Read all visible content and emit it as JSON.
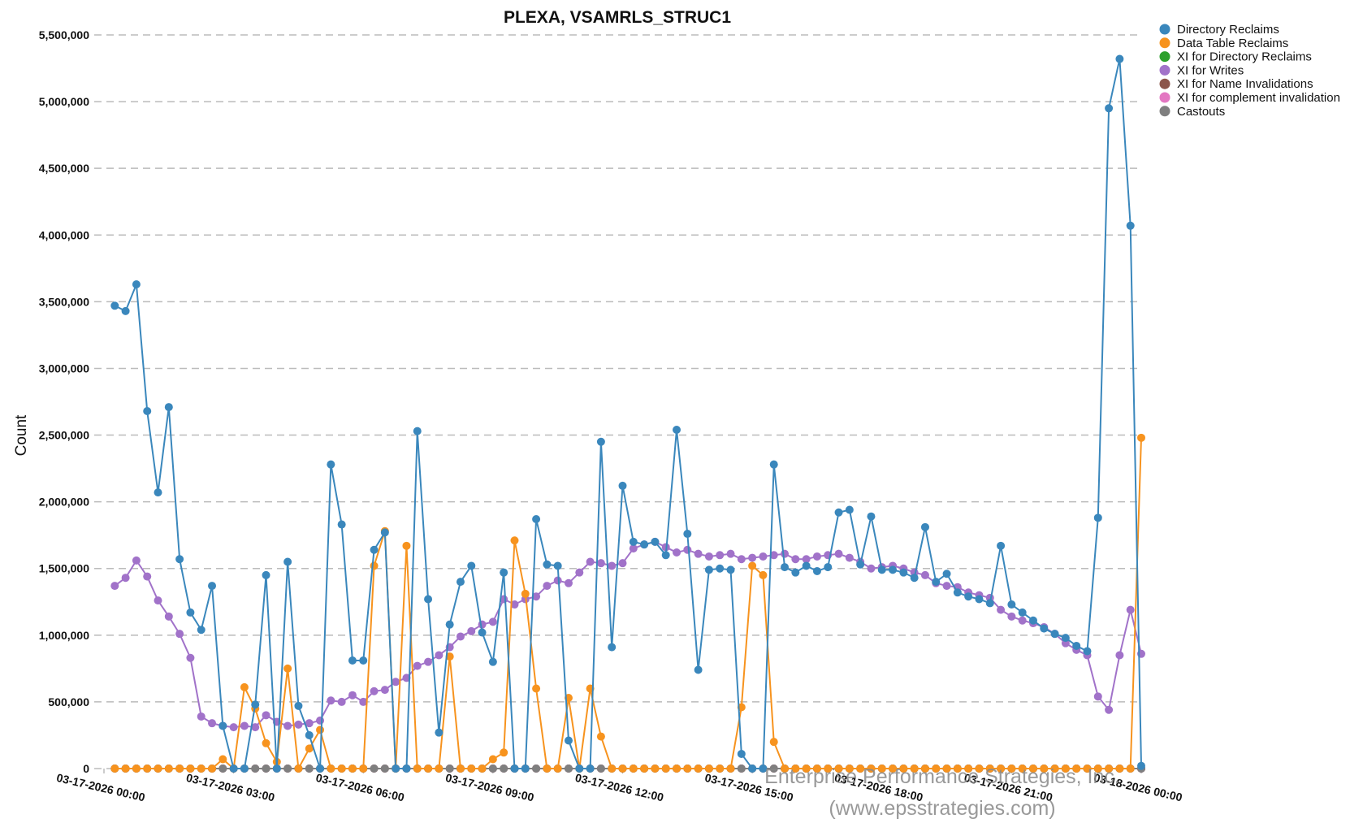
{
  "chart_data": {
    "type": "line",
    "title": "PLEXA, VSAMRLS_STRUC1",
    "ylabel": "Count",
    "watermark": [
      "Enterprise Performance Strategies, Inc.",
      "(www.epsstrategies.com)"
    ],
    "grid": true,
    "legend": "right",
    "xlim": [
      "03-17-2026 00:00",
      "03-18-2026 00:00"
    ],
    "xticks": [
      "03-17-2026 00:00",
      "03-17-2026 03:00",
      "03-17-2026 06:00",
      "03-17-2026 09:00",
      "03-17-2026 12:00",
      "03-17-2026 15:00",
      "03-17-2026 18:00",
      "03-17-2026 21:00",
      "03-18-2026 00:00"
    ],
    "ylim": [
      0,
      5500000
    ],
    "yticks": [
      0,
      {
        "value": 500000,
        "label": "500,000"
      },
      {
        "value": 1000000,
        "label": "1,000,000"
      },
      {
        "value": 1500000,
        "label": "1,500,000"
      },
      {
        "value": 2000000,
        "label": "2,000,000"
      },
      {
        "value": 2500000,
        "label": "2,500,000"
      },
      {
        "value": 3000000,
        "label": "3,000,000"
      },
      {
        "value": 3500000,
        "label": "3,500,000"
      },
      {
        "value": 4000000,
        "label": "4,000,000"
      },
      {
        "value": 4500000,
        "label": "4,500,000"
      },
      {
        "value": 5000000,
        "label": "5,000,000"
      },
      {
        "value": 5500000,
        "label": "5,500,000"
      }
    ],
    "x": [
      "03-17-2026 00:15",
      "03-17-2026 00:30",
      "03-17-2026 00:45",
      "03-17-2026 01:00",
      "03-17-2026 01:15",
      "03-17-2026 01:30",
      "03-17-2026 01:45",
      "03-17-2026 02:00",
      "03-17-2026 02:15",
      "03-17-2026 02:30",
      "03-17-2026 02:45",
      "03-17-2026 03:00",
      "03-17-2026 03:15",
      "03-17-2026 03:30",
      "03-17-2026 03:45",
      "03-17-2026 04:00",
      "03-17-2026 04:15",
      "03-17-2026 04:30",
      "03-17-2026 04:45",
      "03-17-2026 05:00",
      "03-17-2026 05:15",
      "03-17-2026 05:30",
      "03-17-2026 05:45",
      "03-17-2026 06:00",
      "03-17-2026 06:15",
      "03-17-2026 06:30",
      "03-17-2026 06:45",
      "03-17-2026 07:00",
      "03-17-2026 07:15",
      "03-17-2026 07:30",
      "03-17-2026 07:45",
      "03-17-2026 08:00",
      "03-17-2026 08:15",
      "03-17-2026 08:30",
      "03-17-2026 08:45",
      "03-17-2026 09:00",
      "03-17-2026 09:15",
      "03-17-2026 09:30",
      "03-17-2026 09:45",
      "03-17-2026 10:00",
      "03-17-2026 10:15",
      "03-17-2026 10:30",
      "03-17-2026 10:45",
      "03-17-2026 11:00",
      "03-17-2026 11:15",
      "03-17-2026 11:30",
      "03-17-2026 11:45",
      "03-17-2026 12:00",
      "03-17-2026 12:15",
      "03-17-2026 12:30",
      "03-17-2026 12:45",
      "03-17-2026 13:00",
      "03-17-2026 13:15",
      "03-17-2026 13:30",
      "03-17-2026 13:45",
      "03-17-2026 14:00",
      "03-17-2026 14:15",
      "03-17-2026 14:30",
      "03-17-2026 14:45",
      "03-17-2026 15:00",
      "03-17-2026 15:15",
      "03-17-2026 15:30",
      "03-17-2026 15:45",
      "03-17-2026 16:00",
      "03-17-2026 16:15",
      "03-17-2026 16:30",
      "03-17-2026 16:45",
      "03-17-2026 17:00",
      "03-17-2026 17:15",
      "03-17-2026 17:30",
      "03-17-2026 17:45",
      "03-17-2026 18:00",
      "03-17-2026 18:15",
      "03-17-2026 18:30",
      "03-17-2026 18:45",
      "03-17-2026 19:00",
      "03-17-2026 19:15",
      "03-17-2026 19:30",
      "03-17-2026 19:45",
      "03-17-2026 20:00",
      "03-17-2026 20:15",
      "03-17-2026 20:30",
      "03-17-2026 20:45",
      "03-17-2026 21:00",
      "03-17-2026 21:15",
      "03-17-2026 21:30",
      "03-17-2026 21:45",
      "03-17-2026 22:00",
      "03-17-2026 22:15",
      "03-17-2026 22:30",
      "03-17-2026 22:45",
      "03-17-2026 23:00",
      "03-17-2026 23:15",
      "03-17-2026 23:30",
      "03-17-2026 23:45",
      "03-18-2026 00:00"
    ],
    "series": [
      {
        "name": "Directory Reclaims",
        "color": "#3a87bc",
        "values": [
          3470000,
          3430000,
          3630000,
          2680000,
          2070000,
          2710000,
          1570000,
          1170000,
          1040000,
          1370000,
          320000,
          0,
          0,
          480000,
          1450000,
          0,
          1550000,
          470000,
          250000,
          0,
          2280000,
          1830000,
          810000,
          810000,
          1640000,
          1770000,
          0,
          0,
          2530000,
          1270000,
          270000,
          1080000,
          1400000,
          1520000,
          1020000,
          800000,
          1470000,
          0,
          0,
          1870000,
          1530000,
          1520000,
          210000,
          0,
          0,
          2450000,
          910000,
          2120000,
          1700000,
          1680000,
          1700000,
          1600000,
          2540000,
          1760000,
          740000,
          1490000,
          1500000,
          1490000,
          110000,
          0,
          0,
          2280000,
          1510000,
          1470000,
          1520000,
          1480000,
          1510000,
          1920000,
          1940000,
          1530000,
          1890000,
          1490000,
          1490000,
          1470000,
          1430000,
          1810000,
          1400000,
          1460000,
          1320000,
          1290000,
          1270000,
          1240000,
          1670000,
          1230000,
          1170000,
          1110000,
          1050000,
          1010000,
          980000,
          920000,
          880000,
          1880000,
          4950000,
          5320000,
          4070000,
          20000
        ]
      },
      {
        "name": "Data Table Reclaims",
        "color": "#f7931e",
        "values": [
          0,
          0,
          0,
          0,
          0,
          0,
          0,
          0,
          0,
          0,
          70000,
          0,
          610000,
          450000,
          190000,
          50000,
          750000,
          0,
          150000,
          290000,
          0,
          0,
          0,
          0,
          1520000,
          1780000,
          0,
          1670000,
          0,
          0,
          0,
          840000,
          0,
          0,
          0,
          70000,
          120000,
          1710000,
          1310000,
          600000,
          0,
          0,
          530000,
          0,
          600000,
          240000,
          0,
          0,
          0,
          0,
          0,
          0,
          0,
          0,
          0,
          0,
          0,
          0,
          460000,
          1520000,
          1450000,
          200000,
          0,
          0,
          0,
          0,
          0,
          0,
          0,
          0,
          0,
          0,
          0,
          0,
          0,
          0,
          0,
          0,
          0,
          0,
          0,
          0,
          0,
          0,
          0,
          0,
          0,
          0,
          0,
          0,
          0,
          0,
          0,
          0,
          0,
          2480000
        ]
      },
      {
        "name": "XI for Directory Reclaims",
        "color": "#2ca02c",
        "values": [
          0,
          0,
          0,
          0,
          0,
          0,
          0,
          0,
          0,
          0,
          0,
          0,
          0,
          0,
          0,
          0,
          0,
          0,
          0,
          0,
          0,
          0,
          0,
          0,
          0,
          0,
          0,
          0,
          0,
          0,
          0,
          0,
          0,
          0,
          0,
          0,
          0,
          0,
          0,
          0,
          0,
          0,
          0,
          0,
          0,
          0,
          0,
          0,
          0,
          0,
          0,
          0,
          0,
          0,
          0,
          0,
          0,
          0,
          0,
          0,
          0,
          0,
          0,
          0,
          0,
          0,
          0,
          0,
          0,
          0,
          0,
          0,
          0,
          0,
          0,
          0,
          0,
          0,
          0,
          0,
          0,
          0,
          0,
          0,
          0,
          0,
          0,
          0,
          0,
          0,
          0,
          0,
          0,
          0,
          0,
          0
        ]
      },
      {
        "name": "XI for Writes",
        "color": "#a172c9",
        "values": [
          1370000,
          1430000,
          1560000,
          1440000,
          1260000,
          1140000,
          1010000,
          830000,
          390000,
          340000,
          320000,
          310000,
          320000,
          310000,
          400000,
          350000,
          320000,
          330000,
          340000,
          360000,
          510000,
          500000,
          550000,
          500000,
          580000,
          590000,
          650000,
          680000,
          770000,
          800000,
          850000,
          910000,
          990000,
          1030000,
          1080000,
          1100000,
          1270000,
          1230000,
          1270000,
          1290000,
          1370000,
          1410000,
          1390000,
          1470000,
          1550000,
          1540000,
          1520000,
          1540000,
          1650000,
          1680000,
          1700000,
          1660000,
          1620000,
          1640000,
          1610000,
          1590000,
          1600000,
          1610000,
          1570000,
          1580000,
          1590000,
          1600000,
          1610000,
          1570000,
          1570000,
          1590000,
          1600000,
          1610000,
          1580000,
          1550000,
          1500000,
          1510000,
          1520000,
          1500000,
          1470000,
          1450000,
          1390000,
          1370000,
          1360000,
          1320000,
          1300000,
          1280000,
          1190000,
          1140000,
          1110000,
          1090000,
          1060000,
          1010000,
          940000,
          890000,
          850000,
          540000,
          440000,
          850000,
          1190000,
          860000
        ]
      },
      {
        "name": "XI for Name Invalidations",
        "color": "#8c564b",
        "values": [
          0,
          0,
          0,
          0,
          0,
          0,
          0,
          0,
          0,
          0,
          0,
          0,
          0,
          0,
          0,
          0,
          0,
          0,
          0,
          0,
          0,
          0,
          0,
          0,
          0,
          0,
          0,
          0,
          0,
          0,
          0,
          0,
          0,
          0,
          0,
          0,
          0,
          0,
          0,
          0,
          0,
          0,
          0,
          0,
          0,
          0,
          0,
          0,
          0,
          0,
          0,
          0,
          0,
          0,
          0,
          0,
          0,
          0,
          0,
          0,
          0,
          0,
          0,
          0,
          0,
          0,
          0,
          0,
          0,
          0,
          0,
          0,
          0,
          0,
          0,
          0,
          0,
          0,
          0,
          0,
          0,
          0,
          0,
          0,
          0,
          0,
          0,
          0,
          0,
          0,
          0,
          0,
          0,
          0,
          0,
          0
        ]
      },
      {
        "name": "XI for complement invalidation",
        "color": "#e377c2",
        "values": [
          0,
          0,
          0,
          0,
          0,
          0,
          0,
          0,
          0,
          0,
          0,
          0,
          0,
          0,
          0,
          0,
          0,
          0,
          0,
          0,
          0,
          0,
          0,
          0,
          0,
          0,
          0,
          0,
          0,
          0,
          0,
          0,
          0,
          0,
          0,
          0,
          0,
          0,
          0,
          0,
          0,
          0,
          0,
          0,
          0,
          0,
          0,
          0,
          0,
          0,
          0,
          0,
          0,
          0,
          0,
          0,
          0,
          0,
          0,
          0,
          0,
          0,
          0,
          0,
          0,
          0,
          0,
          0,
          0,
          0,
          0,
          0,
          0,
          0,
          0,
          0,
          0,
          0,
          0,
          0,
          0,
          0,
          0,
          0,
          0,
          0,
          0,
          0,
          0,
          0,
          0,
          0,
          0,
          0,
          0,
          0
        ]
      },
      {
        "name": "Castouts",
        "color": "#7f7f7f",
        "values": [
          0,
          0,
          0,
          0,
          0,
          0,
          0,
          0,
          0,
          0,
          0,
          0,
          0,
          0,
          0,
          0,
          0,
          0,
          0,
          0,
          0,
          0,
          0,
          0,
          0,
          0,
          0,
          0,
          0,
          0,
          0,
          0,
          0,
          0,
          0,
          0,
          0,
          0,
          0,
          0,
          0,
          0,
          0,
          0,
          0,
          0,
          0,
          0,
          0,
          0,
          0,
          0,
          0,
          0,
          0,
          0,
          0,
          0,
          0,
          0,
          0,
          0,
          0,
          0,
          0,
          0,
          0,
          0,
          0,
          0,
          0,
          0,
          0,
          0,
          0,
          0,
          0,
          0,
          0,
          0,
          0,
          0,
          0,
          0,
          0,
          0,
          0,
          0,
          0,
          0,
          0,
          0,
          0,
          0,
          0,
          0
        ]
      }
    ]
  }
}
